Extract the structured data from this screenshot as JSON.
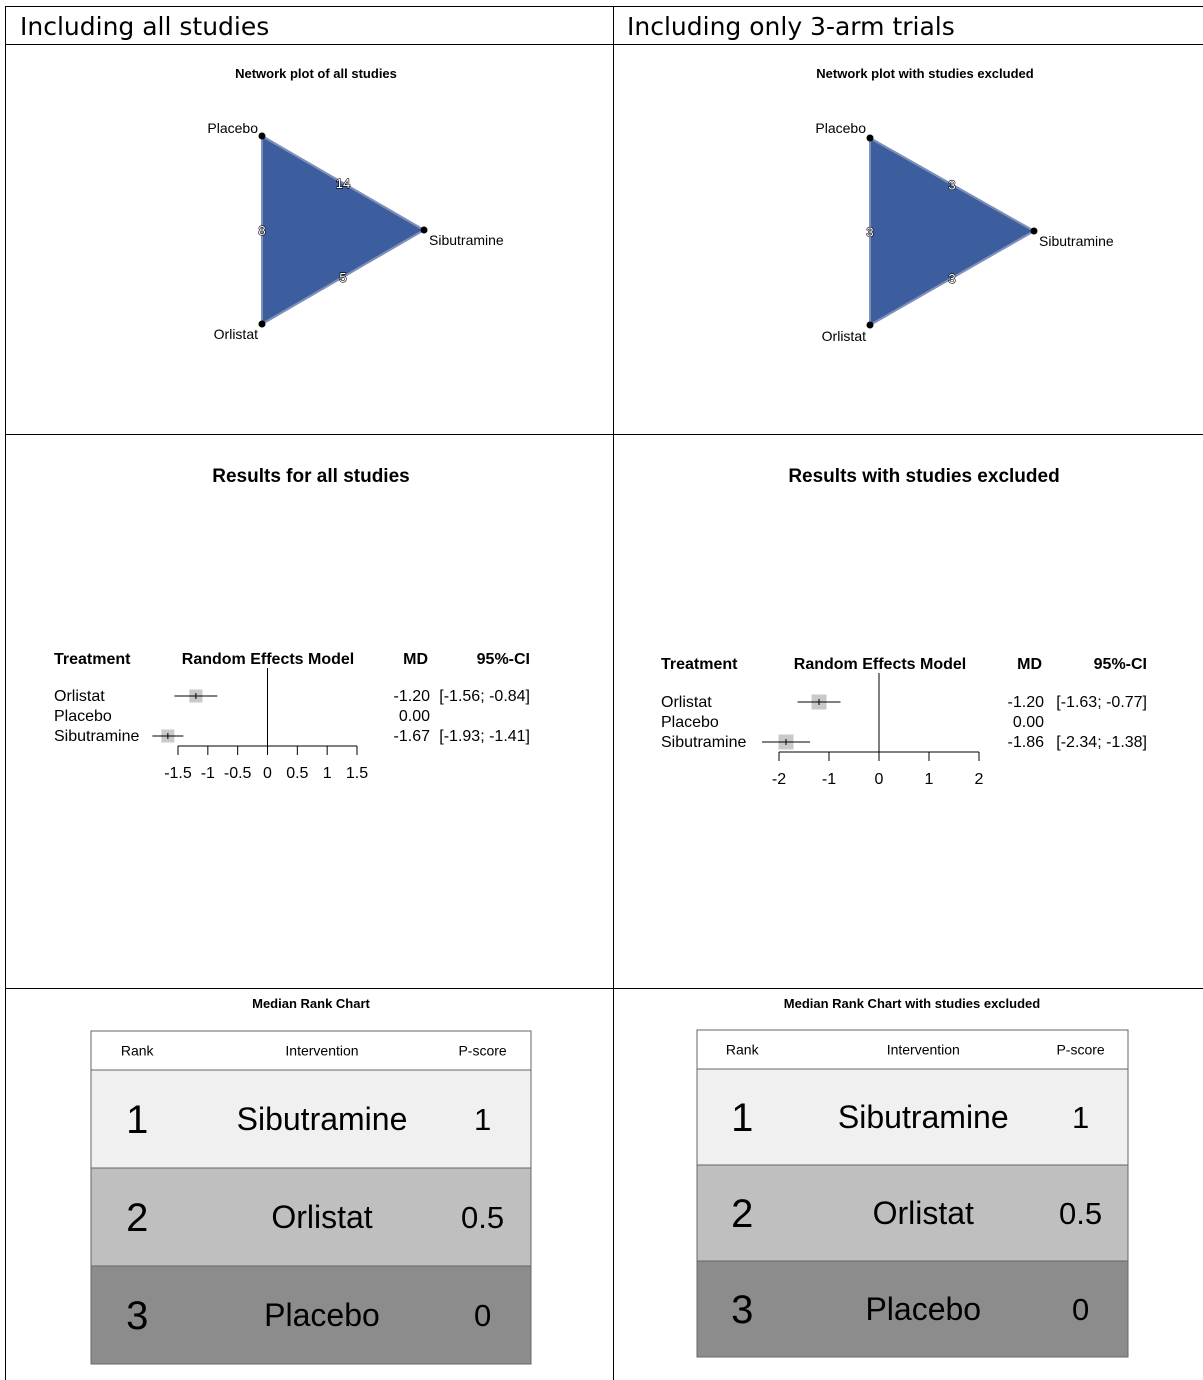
{
  "headers": {
    "left": "Including all studies",
    "right": "Including only 3-arm trials"
  },
  "colors": {
    "network_fill": "#3c5d9e",
    "network_stroke": "#7f8fb8",
    "rank_row1": "#f0f0f0",
    "rank_row2": "#bfbfbf",
    "rank_row3": "#8c8c8c",
    "square": "#c9c9c9"
  },
  "panels": {
    "left": {
      "network_title": "Network plot of all studies",
      "forest_title": "Results for all studies",
      "rank_title": "Median Rank Chart"
    },
    "right": {
      "network_title": "Network plot with studies excluded",
      "forest_title": "Results with studies excluded",
      "rank_title": "Median Rank Chart with studies excluded"
    }
  },
  "chart_data": [
    {
      "type": "network",
      "title": "Network plot of all studies",
      "nodes": [
        "Placebo",
        "Sibutramine",
        "Orlistat"
      ],
      "edges": [
        {
          "from": "Placebo",
          "to": "Sibutramine",
          "studies": "14"
        },
        {
          "from": "Placebo",
          "to": "Orlistat",
          "studies": "8"
        },
        {
          "from": "Orlistat",
          "to": "Sibutramine",
          "studies": "5"
        }
      ]
    },
    {
      "type": "network",
      "title": "Network plot with studies excluded",
      "nodes": [
        "Placebo",
        "Sibutramine",
        "Orlistat"
      ],
      "edges": [
        {
          "from": "Placebo",
          "to": "Sibutramine",
          "studies": "3"
        },
        {
          "from": "Placebo",
          "to": "Orlistat",
          "studies": "3"
        },
        {
          "from": "Orlistat",
          "to": "Sibutramine",
          "studies": "3"
        }
      ]
    },
    {
      "type": "forest",
      "title": "Results for all studies",
      "headers": {
        "treatment": "Treatment",
        "model": "Random Effects Model",
        "md": "MD",
        "ci": "95%-CI"
      },
      "rows": [
        {
          "treatment": "Orlistat",
          "md": -1.2,
          "lo": -1.56,
          "hi": -0.84,
          "md_text": "-1.20",
          "ci_text": "[-1.56; -0.84]"
        },
        {
          "treatment": "Placebo",
          "md": 0.0,
          "lo": null,
          "hi": null,
          "md_text": "0.00",
          "ci_text": ""
        },
        {
          "treatment": "Sibutramine",
          "md": -1.67,
          "lo": -1.93,
          "hi": -1.41,
          "md_text": "-1.67",
          "ci_text": "[-1.93; -1.41]"
        }
      ],
      "xlim": [
        -1.5,
        1.5
      ],
      "ticks": [
        -1.5,
        -1,
        -0.5,
        0,
        0.5,
        1,
        1.5
      ],
      "tick_labels": [
        "-1.5",
        "-1",
        "-0.5",
        "0",
        "0.5",
        "1",
        "1.5"
      ]
    },
    {
      "type": "forest",
      "title": "Results with studies excluded",
      "headers": {
        "treatment": "Treatment",
        "model": "Random Effects Model",
        "md": "MD",
        "ci": "95%-CI"
      },
      "rows": [
        {
          "treatment": "Orlistat",
          "md": -1.2,
          "lo": -1.63,
          "hi": -0.77,
          "md_text": "-1.20",
          "ci_text": "[-1.63; -0.77]"
        },
        {
          "treatment": "Placebo",
          "md": 0.0,
          "lo": null,
          "hi": null,
          "md_text": "0.00",
          "ci_text": ""
        },
        {
          "treatment": "Sibutramine",
          "md": -1.86,
          "lo": -2.34,
          "hi": -1.38,
          "md_text": "-1.86",
          "ci_text": "[-2.34; -1.38]"
        }
      ],
      "xlim": [
        -2,
        2
      ],
      "ticks": [
        -2,
        -1,
        0,
        1,
        2
      ],
      "tick_labels": [
        "-2",
        "-1",
        "0",
        "1",
        "2"
      ]
    },
    {
      "type": "table",
      "title": "Median Rank Chart",
      "columns": [
        "Rank",
        "Intervention",
        "P-score"
      ],
      "rows": [
        [
          "1",
          "Sibutramine",
          "1"
        ],
        [
          "2",
          "Orlistat",
          "0.5"
        ],
        [
          "3",
          "Placebo",
          "0"
        ]
      ]
    },
    {
      "type": "table",
      "title": "Median Rank Chart with studies excluded",
      "columns": [
        "Rank",
        "Intervention",
        "P-score"
      ],
      "rows": [
        [
          "1",
          "Sibutramine",
          "1"
        ],
        [
          "2",
          "Orlistat",
          "0.5"
        ],
        [
          "3",
          "Placebo",
          "0"
        ]
      ]
    }
  ]
}
